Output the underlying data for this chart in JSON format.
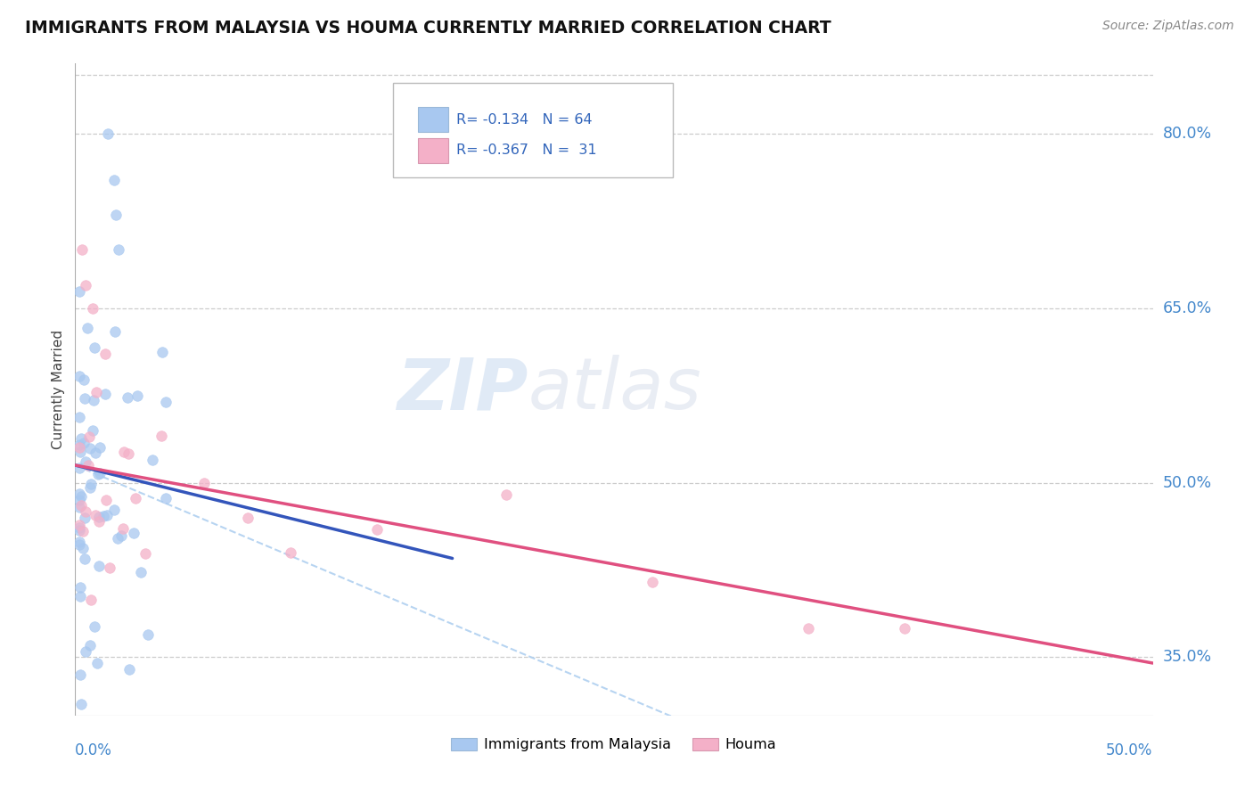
{
  "title": "IMMIGRANTS FROM MALAYSIA VS HOUMA CURRENTLY MARRIED CORRELATION CHART",
  "source": "Source: ZipAtlas.com",
  "ylabel_label": "Currently Married",
  "xmin": 0.0,
  "xmax": 0.5,
  "ymin": 0.3,
  "ymax": 0.86,
  "series1_color": "#a8c8f0",
  "series2_color": "#f4b0c8",
  "series1_label": "Immigrants from Malaysia",
  "series2_label": "Houma",
  "watermark_zip": "ZIP",
  "watermark_atlas": "atlas",
  "blue_line_color": "#3355bb",
  "pink_line_color": "#e05080",
  "dashed_line_color": "#b0d0f0",
  "right_label_color": "#4488cc",
  "ytick_vals": [
    0.35,
    0.5,
    0.65,
    0.8
  ],
  "ytick_labels": [
    "35.0%",
    "50.0%",
    "65.0%",
    "80.0%"
  ],
  "s1_seed": 42,
  "s2_seed": 77
}
